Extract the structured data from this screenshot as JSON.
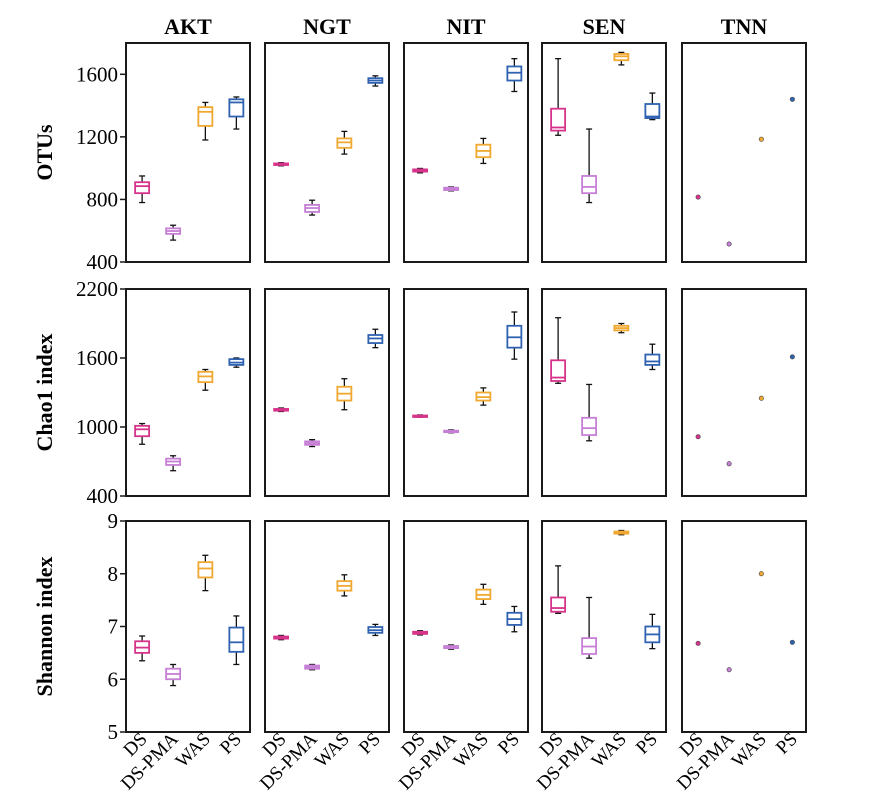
{
  "chart_data": {
    "type": "boxplot",
    "layout": "facet grid: 3 metric rows x 5 treatment columns",
    "facets": [
      "AKT",
      "NGT",
      "NIT",
      "SEN",
      "TNN"
    ],
    "categories": [
      "DS",
      "DS-PMA",
      "WAS",
      "PS"
    ],
    "colors": {
      "DS": "#d6338a",
      "DS-PMA": "#c77fd6",
      "WAS": "#f0a830",
      "PS": "#2f62b0"
    },
    "rows": [
      {
        "label": "OTUs",
        "ylim": [
          400,
          1800
        ],
        "ticks": [
          400,
          800,
          1200,
          1600
        ],
        "boxes": {
          "AKT": [
            {
              "cat": "DS",
              "min": 780,
              "q1": 840,
              "median": 885,
              "q3": 910,
              "max": 950
            },
            {
              "cat": "DS-PMA",
              "min": 540,
              "q1": 580,
              "median": 598,
              "q3": 615,
              "max": 635
            },
            {
              "cat": "WAS",
              "min": 1180,
              "q1": 1270,
              "median": 1360,
              "q3": 1390,
              "max": 1420
            },
            {
              "cat": "PS",
              "min": 1250,
              "q1": 1330,
              "median": 1420,
              "q3": 1440,
              "max": 1455
            }
          ],
          "NGT": [
            {
              "cat": "DS",
              "min": 1015,
              "q1": 1020,
              "median": 1025,
              "q3": 1030,
              "max": 1035
            },
            {
              "cat": "DS-PMA",
              "min": 700,
              "q1": 720,
              "median": 745,
              "q3": 765,
              "max": 795
            },
            {
              "cat": "WAS",
              "min": 1090,
              "q1": 1130,
              "median": 1165,
              "q3": 1190,
              "max": 1235
            },
            {
              "cat": "PS",
              "min": 1525,
              "q1": 1545,
              "median": 1560,
              "q3": 1575,
              "max": 1590
            }
          ],
          "NIT": [
            {
              "cat": "DS",
              "min": 970,
              "q1": 978,
              "median": 985,
              "q3": 992,
              "max": 998
            },
            {
              "cat": "DS-PMA",
              "min": 855,
              "q1": 860,
              "median": 868,
              "q3": 875,
              "max": 880
            },
            {
              "cat": "WAS",
              "min": 1030,
              "q1": 1070,
              "median": 1110,
              "q3": 1150,
              "max": 1190
            },
            {
              "cat": "PS",
              "min": 1490,
              "q1": 1560,
              "median": 1610,
              "q3": 1650,
              "max": 1700
            }
          ],
          "SEN": [
            {
              "cat": "DS",
              "min": 1210,
              "q1": 1240,
              "median": 1260,
              "q3": 1380,
              "max": 1700
            },
            {
              "cat": "DS-PMA",
              "min": 780,
              "q1": 840,
              "median": 880,
              "q3": 950,
              "max": 1250
            },
            {
              "cat": "WAS",
              "min": 1660,
              "q1": 1690,
              "median": 1715,
              "q3": 1730,
              "max": 1740
            },
            {
              "cat": "PS",
              "min": 1310,
              "q1": 1320,
              "median": 1330,
              "q3": 1410,
              "max": 1480
            }
          ],
          "TNN": [
            {
              "cat": "DS",
              "value": 815
            },
            {
              "cat": "DS-PMA",
              "value": 515
            },
            {
              "cat": "WAS",
              "value": 1185
            },
            {
              "cat": "PS",
              "value": 1440
            }
          ]
        }
      },
      {
        "label": "Chao1 index",
        "ylim": [
          400,
          2200
        ],
        "ticks": [
          400,
          1000,
          1600,
          2200
        ],
        "boxes": {
          "AKT": [
            {
              "cat": "DS",
              "min": 850,
              "q1": 920,
              "median": 980,
              "q3": 1010,
              "max": 1030
            },
            {
              "cat": "DS-PMA",
              "min": 620,
              "q1": 670,
              "median": 700,
              "q3": 725,
              "max": 750
            },
            {
              "cat": "WAS",
              "min": 1320,
              "q1": 1390,
              "median": 1440,
              "q3": 1480,
              "max": 1500
            },
            {
              "cat": "PS",
              "min": 1520,
              "q1": 1540,
              "median": 1560,
              "q3": 1590,
              "max": 1600
            }
          ],
          "NGT": [
            {
              "cat": "DS",
              "min": 1135,
              "q1": 1142,
              "median": 1150,
              "q3": 1157,
              "max": 1165
            },
            {
              "cat": "DS-PMA",
              "min": 830,
              "q1": 845,
              "median": 860,
              "q3": 875,
              "max": 890
            },
            {
              "cat": "WAS",
              "min": 1150,
              "q1": 1230,
              "median": 1290,
              "q3": 1350,
              "max": 1420
            },
            {
              "cat": "PS",
              "min": 1690,
              "q1": 1730,
              "median": 1770,
              "q3": 1800,
              "max": 1850
            }
          ],
          "NIT": [
            {
              "cat": "DS",
              "min": 1085,
              "q1": 1090,
              "median": 1095,
              "q3": 1100,
              "max": 1105
            },
            {
              "cat": "DS-PMA",
              "min": 950,
              "q1": 955,
              "median": 960,
              "q3": 968,
              "max": 975
            },
            {
              "cat": "WAS",
              "min": 1190,
              "q1": 1230,
              "median": 1260,
              "q3": 1300,
              "max": 1340
            },
            {
              "cat": "PS",
              "min": 1590,
              "q1": 1690,
              "median": 1780,
              "q3": 1880,
              "max": 2000
            }
          ],
          "SEN": [
            {
              "cat": "DS",
              "min": 1380,
              "q1": 1400,
              "median": 1430,
              "q3": 1580,
              "max": 1950
            },
            {
              "cat": "DS-PMA",
              "min": 880,
              "q1": 930,
              "median": 990,
              "q3": 1080,
              "max": 1370
            },
            {
              "cat": "WAS",
              "min": 1820,
              "q1": 1840,
              "median": 1860,
              "q3": 1880,
              "max": 1900
            },
            {
              "cat": "PS",
              "min": 1500,
              "q1": 1540,
              "median": 1570,
              "q3": 1630,
              "max": 1720
            }
          ],
          "TNN": [
            {
              "cat": "DS",
              "value": 915
            },
            {
              "cat": "DS-PMA",
              "value": 680
            },
            {
              "cat": "WAS",
              "value": 1250
            },
            {
              "cat": "PS",
              "value": 1610
            }
          ]
        }
      },
      {
        "label": "Shannon index",
        "ylim": [
          5,
          9
        ],
        "ticks": [
          5,
          6,
          7,
          8,
          9
        ],
        "boxes": {
          "AKT": [
            {
              "cat": "DS",
              "min": 6.35,
              "q1": 6.5,
              "median": 6.6,
              "q3": 6.72,
              "max": 6.82
            },
            {
              "cat": "DS-PMA",
              "min": 5.88,
              "q1": 6.0,
              "median": 6.1,
              "q3": 6.2,
              "max": 6.28
            },
            {
              "cat": "WAS",
              "min": 7.68,
              "q1": 7.93,
              "median": 8.1,
              "q3": 8.22,
              "max": 8.35
            },
            {
              "cat": "PS",
              "min": 6.28,
              "q1": 6.52,
              "median": 6.7,
              "q3": 6.98,
              "max": 7.2
            }
          ],
          "NGT": [
            {
              "cat": "DS",
              "min": 6.75,
              "q1": 6.77,
              "median": 6.79,
              "q3": 6.81,
              "max": 6.83
            },
            {
              "cat": "DS-PMA",
              "min": 6.18,
              "q1": 6.2,
              "median": 6.23,
              "q3": 6.26,
              "max": 6.28
            },
            {
              "cat": "WAS",
              "min": 7.58,
              "q1": 7.68,
              "median": 7.77,
              "q3": 7.86,
              "max": 7.98
            },
            {
              "cat": "PS",
              "min": 6.83,
              "q1": 6.88,
              "median": 6.93,
              "q3": 6.99,
              "max": 7.04
            }
          ],
          "NIT": [
            {
              "cat": "DS",
              "min": 6.84,
              "q1": 6.86,
              "median": 6.88,
              "q3": 6.9,
              "max": 6.92
            },
            {
              "cat": "DS-PMA",
              "min": 6.57,
              "q1": 6.59,
              "median": 6.61,
              "q3": 6.63,
              "max": 6.65
            },
            {
              "cat": "WAS",
              "min": 7.42,
              "q1": 7.52,
              "median": 7.6,
              "q3": 7.7,
              "max": 7.8
            },
            {
              "cat": "PS",
              "min": 6.9,
              "q1": 7.03,
              "median": 7.14,
              "q3": 7.26,
              "max": 7.38
            }
          ],
          "SEN": [
            {
              "cat": "DS",
              "min": 7.25,
              "q1": 7.28,
              "median": 7.35,
              "q3": 7.55,
              "max": 8.15
            },
            {
              "cat": "DS-PMA",
              "min": 6.4,
              "q1": 6.48,
              "median": 6.62,
              "q3": 6.78,
              "max": 7.55
            },
            {
              "cat": "WAS",
              "min": 8.74,
              "q1": 8.76,
              "median": 8.78,
              "q3": 8.8,
              "max": 8.82
            },
            {
              "cat": "PS",
              "min": 6.58,
              "q1": 6.7,
              "median": 6.85,
              "q3": 7.0,
              "max": 7.23
            }
          ],
          "TNN": [
            {
              "cat": "DS",
              "value": 6.68
            },
            {
              "cat": "DS-PMA",
              "value": 6.18
            },
            {
              "cat": "WAS",
              "value": 8.0
            },
            {
              "cat": "PS",
              "value": 6.7
            }
          ]
        }
      }
    ]
  }
}
